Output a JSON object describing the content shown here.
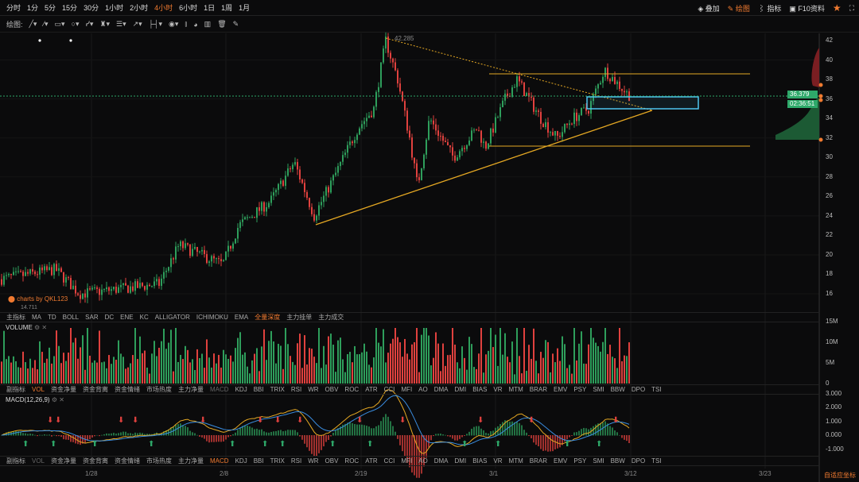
{
  "periods": [
    "分时",
    "1分",
    "5分",
    "15分",
    "30分",
    "1小时",
    "2小时",
    "4小时",
    "6小时",
    "1日",
    "1周",
    "1月"
  ],
  "active_period": "4小时",
  "right_tools": {
    "overlay": "叠加",
    "draw": "绘图",
    "indicator": "指标",
    "f10": "F10资料"
  },
  "draw_label": "绘图:",
  "draw_tools": [
    "line-tool-icon",
    "ray-tool-icon",
    "rect-tool-icon",
    "circle-tool-icon",
    "pattern-tool-icon",
    "fork-tool-icon",
    "fib-tool-icon",
    "arrow-tool-icon",
    "measure-tool-icon",
    "note-tool-icon",
    "bars-icon",
    "snapshot-icon",
    "chart-icon",
    "trash-icon",
    "pen-icon"
  ],
  "price_axis": [
    "42",
    "40",
    "38",
    "36",
    "34",
    "32",
    "30",
    "28",
    "26",
    "24",
    "22",
    "20",
    "18",
    "16"
  ],
  "current_price": "36.379",
  "countdown": "02:36:51",
  "high_label": "42.285",
  "low_label": "14.711",
  "watermark": "charts by QKL123",
  "main_tabs": [
    "主指标",
    "MA",
    "TD",
    "BOLL",
    "SAR",
    "DC",
    "ENE",
    "KC",
    "ALLIGATOR",
    "ICHIMOKU",
    "EMA",
    "全量深度",
    "主力挂单",
    "主力成交"
  ],
  "main_tabs_active": "全量深度",
  "volume_title": "VOLUME",
  "volume_axis": [
    "15M",
    "10M",
    "5M",
    "0"
  ],
  "sub_tabs": [
    "副指标",
    "VOL",
    "资金净量",
    "资金背离",
    "资金情绪",
    "市场热度",
    "主力净量",
    "MACD",
    "KDJ",
    "BBI",
    "TRIX",
    "RSI",
    "WR",
    "OBV",
    "ROC",
    "ATR",
    "CCI",
    "MFI",
    "AO",
    "DMA",
    "DMI",
    "BIAS",
    "VR",
    "MTM",
    "BRAR",
    "EMV",
    "PSY",
    "SMI",
    "BBW",
    "DPO",
    "TSI"
  ],
  "macd_title": "MACD(12,26,9)",
  "macd_axis": [
    "3.000",
    "2.000",
    "1.000",
    "0.000",
    "-1.000"
  ],
  "time_axis": [
    "1/28",
    "2/8",
    "2/19",
    "3/1",
    "3/12",
    "3/23"
  ],
  "auto_axis": "自适应坐标",
  "colors": {
    "up": "#2e9e5b",
    "down": "#e0413e",
    "accent": "#f07a30",
    "trend": "#e5a823"
  },
  "chart_data": {
    "type": "candlestick",
    "anchors_price": [
      17.5,
      18.5,
      16,
      16.5,
      17,
      21,
      19,
      23,
      25.5,
      29.5,
      24,
      28,
      33,
      35,
      42,
      38,
      32,
      27,
      34,
      30,
      33,
      31,
      36,
      38,
      34,
      32,
      34,
      35,
      39,
      36.4
    ],
    "ylim": [
      14.7,
      42.3
    ],
    "xlabels": [
      "1/28",
      "2/8",
      "2/19",
      "3/1",
      "3/12",
      "3/23"
    ]
  }
}
